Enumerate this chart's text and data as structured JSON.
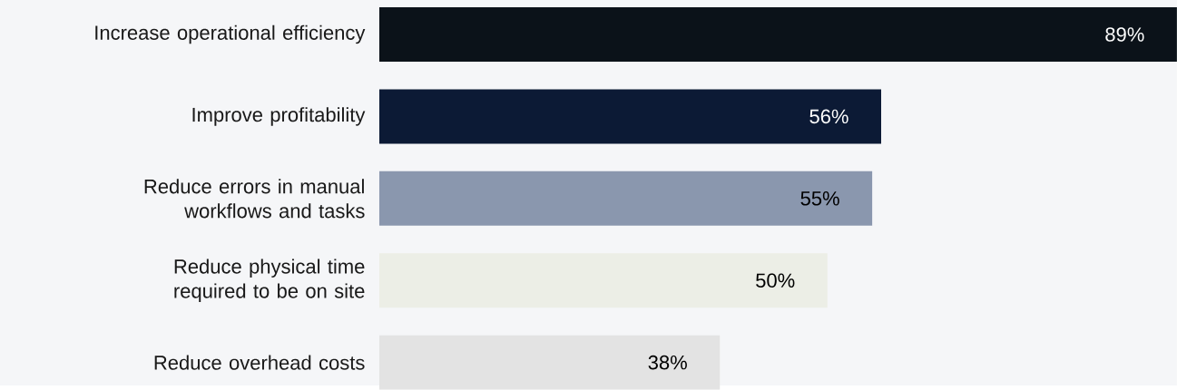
{
  "chart_data": {
    "type": "bar",
    "orientation": "horizontal",
    "categories": [
      "Increase operational efficiency",
      "Improve profitability",
      "Reduce errors in manual workflows and tasks",
      "Reduce physical time required to be on site",
      "Reduce overhead costs"
    ],
    "values": [
      89,
      56,
      55,
      50,
      38
    ],
    "value_labels": [
      "89%",
      "56%",
      "55%",
      "50%",
      "38%"
    ],
    "colors": [
      "#0b1219",
      "#0c1a35",
      "#8a97ae",
      "#eceee6",
      "#e3e3e3"
    ]
  }
}
